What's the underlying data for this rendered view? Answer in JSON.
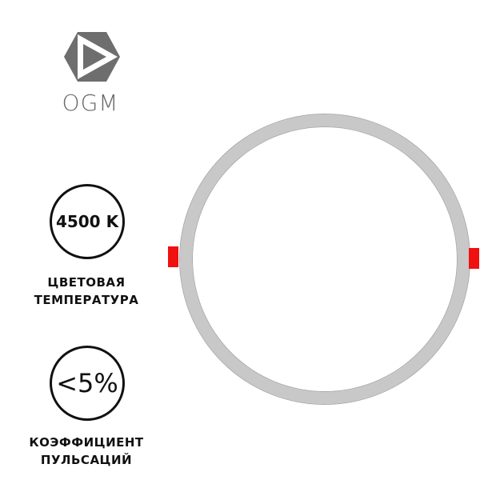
{
  "brand": {
    "name": "OGM",
    "logo_color": "#6e6e6e"
  },
  "specs": [
    {
      "value": "4500 K",
      "caption_lines": [
        "ЦВЕТОВАЯ",
        "ТЕМПЕРАТУРА"
      ]
    },
    {
      "value": "<5%",
      "caption_lines": [
        "КОЭФФИЦИЕНТ",
        "ПУЛЬСАЦИЙ"
      ]
    }
  ],
  "product": {
    "ring_color": "#c8c8c8",
    "clip_color": "#f01010"
  }
}
